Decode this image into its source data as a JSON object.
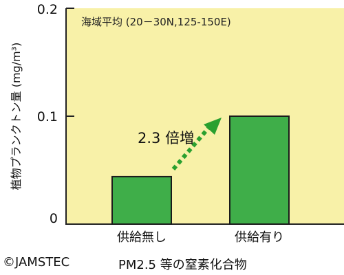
{
  "chart_data": {
    "type": "bar",
    "categories": [
      "供給無し",
      "供給有り"
    ],
    "values": [
      0.044,
      0.1
    ],
    "ylim": [
      0,
      0.2
    ],
    "yticks": [
      "0",
      "0.1",
      "0.2"
    ],
    "ylabel": "植物プランクトン量 (mg/m³)",
    "xlabel": "PM2.5 等の窒素化合物",
    "annotation": "海域平均 (20－30N,125-150E)",
    "arrow_label": "2.3 倍増",
    "grid": false,
    "colors": {
      "plot_bg": "#f8f1a8",
      "bar": "#3fae49",
      "arrow": "#2aa02f"
    }
  },
  "credit": "©JAMSTEC"
}
